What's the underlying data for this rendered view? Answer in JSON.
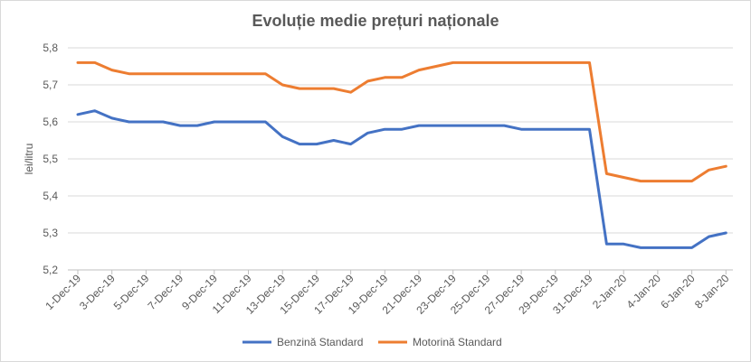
{
  "chart_data": {
    "type": "line",
    "title": "Evoluție medie prețuri naționale",
    "xlabel": "",
    "ylabel": "lei/litru",
    "ylim": [
      5.2,
      5.8
    ],
    "yticks": [
      "5,2",
      "5,3",
      "5,4",
      "5,5",
      "5,6",
      "5,7",
      "5,8"
    ],
    "grid": "horizontal",
    "legend": "bottom",
    "x": [
      "1-Dec-19",
      "2-Dec-19",
      "3-Dec-19",
      "4-Dec-19",
      "5-Dec-19",
      "6-Dec-19",
      "7-Dec-19",
      "8-Dec-19",
      "9-Dec-19",
      "10-Dec-19",
      "11-Dec-19",
      "12-Dec-19",
      "13-Dec-19",
      "14-Dec-19",
      "15-Dec-19",
      "16-Dec-19",
      "17-Dec-19",
      "18-Dec-19",
      "19-Dec-19",
      "20-Dec-19",
      "21-Dec-19",
      "22-Dec-19",
      "23-Dec-19",
      "24-Dec-19",
      "25-Dec-19",
      "26-Dec-19",
      "27-Dec-19",
      "28-Dec-19",
      "29-Dec-19",
      "30-Dec-19",
      "31-Dec-19",
      "1-Jan-20",
      "2-Jan-20",
      "3-Jan-20",
      "4-Jan-20",
      "5-Jan-20",
      "6-Jan-20",
      "7-Jan-20",
      "8-Jan-20"
    ],
    "xticks": [
      "1-Dec-19",
      "3-Dec-19",
      "5-Dec-19",
      "7-Dec-19",
      "9-Dec-19",
      "11-Dec-19",
      "13-Dec-19",
      "15-Dec-19",
      "17-Dec-19",
      "19-Dec-19",
      "21-Dec-19",
      "23-Dec-19",
      "25-Dec-19",
      "27-Dec-19",
      "29-Dec-19",
      "31-Dec-19",
      "2-Jan-20",
      "4-Jan-20",
      "6-Jan-20",
      "8-Jan-20"
    ],
    "series": [
      {
        "name": "Benzină Standard",
        "color": "#4472c4",
        "values": [
          5.62,
          5.63,
          5.61,
          5.6,
          5.6,
          5.6,
          5.59,
          5.59,
          5.6,
          5.6,
          5.6,
          5.6,
          5.56,
          5.54,
          5.54,
          5.55,
          5.54,
          5.57,
          5.58,
          5.58,
          5.59,
          5.59,
          5.59,
          5.59,
          5.59,
          5.59,
          5.58,
          5.58,
          5.58,
          5.58,
          5.58,
          5.27,
          5.27,
          5.26,
          5.26,
          5.26,
          5.26,
          5.29,
          5.3
        ]
      },
      {
        "name": "Motorină Standard",
        "color": "#ed7d31",
        "values": [
          5.76,
          5.76,
          5.74,
          5.73,
          5.73,
          5.73,
          5.73,
          5.73,
          5.73,
          5.73,
          5.73,
          5.73,
          5.7,
          5.69,
          5.69,
          5.69,
          5.68,
          5.71,
          5.72,
          5.72,
          5.74,
          5.75,
          5.76,
          5.76,
          5.76,
          5.76,
          5.76,
          5.76,
          5.76,
          5.76,
          5.76,
          5.46,
          5.45,
          5.44,
          5.44,
          5.44,
          5.44,
          5.47,
          5.48
        ]
      }
    ]
  }
}
